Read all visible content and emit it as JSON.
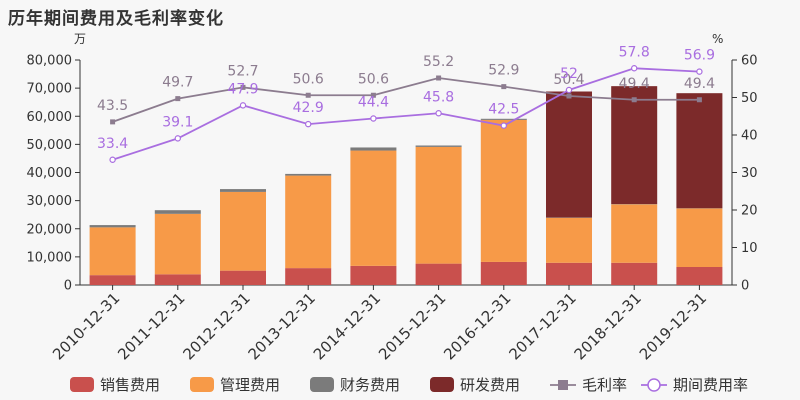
{
  "chart_data": {
    "type": "bar",
    "title": "历年期间费用及毛利率变化",
    "categories": [
      "2010-12-31",
      "2011-12-31",
      "2012-12-31",
      "2013-12-31",
      "2014-12-31",
      "2015-12-31",
      "2016-12-31",
      "2017-12-31",
      "2018-12-31",
      "2019-12-31"
    ],
    "stacked": true,
    "y_left": {
      "unit": "万",
      "lim": [
        0,
        80000
      ],
      "ticks": [
        "0",
        "10,000",
        "20,000",
        "30,000",
        "40,000",
        "50,000",
        "60,000",
        "70,000",
        "80,000"
      ]
    },
    "y_right": {
      "unit": "%",
      "lim": [
        0,
        60
      ],
      "ticks": [
        "0",
        "10",
        "20",
        "30",
        "40",
        "50",
        "60"
      ]
    },
    "grid": false,
    "legend_position": "bottom",
    "bar_series": [
      {
        "name": "销售费用",
        "color": "#c9504d",
        "values": [
          3500,
          3800,
          5100,
          6000,
          6800,
          7600,
          8200,
          7900,
          7900,
          6400
        ]
      },
      {
        "name": "管理费用",
        "color": "#f79a48",
        "values": [
          17000,
          21500,
          28000,
          32900,
          41000,
          41500,
          50500,
          16000,
          20800,
          20800
        ]
      },
      {
        "name": "财务费用",
        "color": "#7b7b7b",
        "values": [
          800,
          1300,
          1000,
          600,
          1100,
          500,
          400,
          100,
          100,
          100
        ]
      },
      {
        "name": "研发费用",
        "color": "#7c2a2a",
        "values": [
          0,
          0,
          0,
          0,
          0,
          0,
          0,
          44800,
          41900,
          40900
        ]
      }
    ],
    "line_series": [
      {
        "name": "毛利率",
        "color": "#8c7c8f",
        "marker": "square",
        "axis": "right",
        "values": [
          43.5,
          49.7,
          52.7,
          50.6,
          50.6,
          55.2,
          52.9,
          50.4,
          49.4,
          49.4
        ],
        "labels": [
          "43.5",
          "49.7",
          "52.7",
          "50.6",
          "50.6",
          "55.2",
          "52.9",
          "50.4",
          "49.4",
          "49.4"
        ]
      },
      {
        "name": "期间费用率",
        "color": "#a96ee0",
        "marker": "circle",
        "axis": "right",
        "values": [
          33.4,
          39.1,
          47.9,
          42.9,
          44.4,
          45.8,
          42.5,
          52,
          57.8,
          56.9
        ],
        "labels": [
          "33.4",
          "39.1",
          "47.9",
          "42.9",
          "44.4",
          "45.8",
          "42.5",
          "52",
          "57.8",
          "56.9"
        ]
      }
    ]
  }
}
